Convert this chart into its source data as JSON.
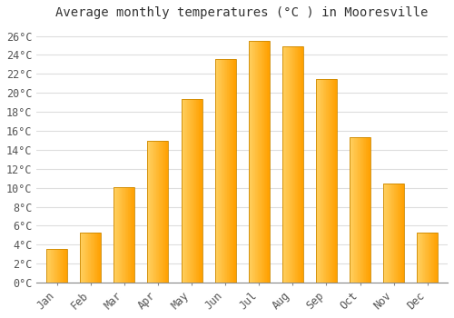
{
  "title": "Average monthly temperatures (°C ) in Mooresville",
  "months": [
    "Jan",
    "Feb",
    "Mar",
    "Apr",
    "May",
    "Jun",
    "Jul",
    "Aug",
    "Sep",
    "Oct",
    "Nov",
    "Dec"
  ],
  "temperatures": [
    3.6,
    5.3,
    10.1,
    14.9,
    19.3,
    23.6,
    25.5,
    24.9,
    21.5,
    15.3,
    10.4,
    5.3
  ],
  "bar_color": "#FFA500",
  "bar_edge_color": "#CC8800",
  "ytick_values": [
    0,
    2,
    4,
    6,
    8,
    10,
    12,
    14,
    16,
    18,
    20,
    22,
    24,
    26
  ],
  "ylim": [
    0,
    27
  ],
  "background_color": "#FFFFFF",
  "grid_color": "#DDDDDD",
  "font_family": "monospace",
  "title_fontsize": 10,
  "tick_fontsize": 8.5
}
